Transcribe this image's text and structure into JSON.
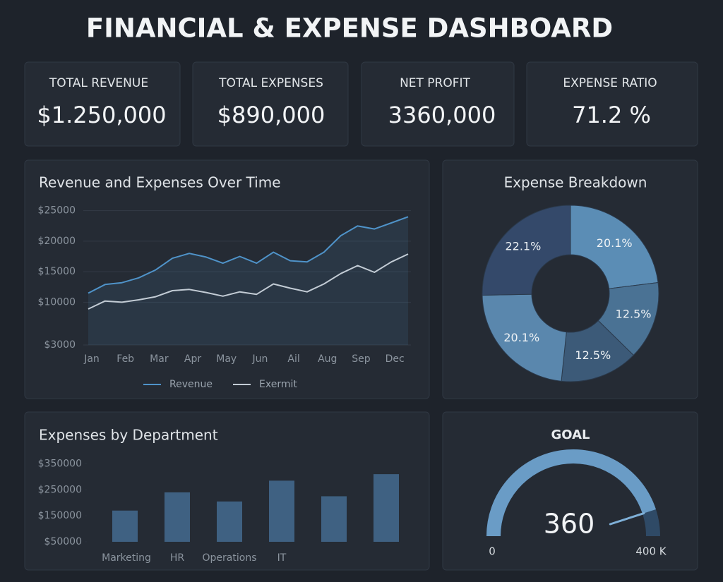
{
  "title": "FINANCIAL & EXPENSE DASHBOARD",
  "kpis": [
    {
      "label": "TOTAL REVENUE",
      "value": "$1.250,000"
    },
    {
      "label": "TOTAL EXPENSES",
      "value": "$890,000"
    },
    {
      "label": "NET PROFIT",
      "value": "3360,000"
    },
    {
      "label": "EXPENSE RATIO",
      "value": "71.2 %"
    }
  ],
  "chart_data": [
    {
      "type": "line",
      "title": "Revenue and Expenses Over Time",
      "categories": [
        "Jan",
        null,
        "Feb",
        null,
        "Mar",
        null,
        "Apr",
        null,
        "May",
        null,
        "Jun",
        null,
        "Ail",
        null,
        "Aug",
        null,
        "Sep",
        null,
        "Dec",
        null
      ],
      "series": [
        {
          "name": "Revenue",
          "color": "#4f93c9",
          "values": [
            11500,
            12900,
            13200,
            14000,
            15300,
            17200,
            18000,
            17400,
            16400,
            17500,
            16400,
            18200,
            16800,
            16600,
            18200,
            20900,
            22500,
            22000,
            23000,
            24000
          ]
        },
        {
          "name": "Exermit",
          "color": "#c3ccd5",
          "values": [
            8900,
            10200,
            10000,
            10400,
            10900,
            11900,
            12100,
            11600,
            11000,
            11700,
            11300,
            13000,
            12300,
            11700,
            13000,
            14700,
            16000,
            14900,
            16600,
            17900
          ]
        }
      ],
      "ylim": [
        3000,
        26000
      ],
      "yticks": [
        {
          "value": 25000,
          "label": "$25000"
        },
        {
          "value": 20000,
          "label": "$20000"
        },
        {
          "value": 15000,
          "label": "$15000"
        },
        {
          "value": 10000,
          "label": "$10000"
        },
        {
          "value": 3000,
          "label": "$3000"
        }
      ],
      "grid": true,
      "legend": "bottom"
    },
    {
      "type": "pie",
      "title": "Expense Breakdown",
      "values": [
        20.1,
        12.5,
        12.5,
        20.1,
        22.1
      ],
      "value_labels": [
        "20.1%",
        "12.5%",
        "12.5%",
        "20.1%",
        "22.1%"
      ],
      "colors": [
        "#5b8db5",
        "#4a7294",
        "#3c5a78",
        "#5a87ad",
        "#34496a"
      ],
      "donut": true
    },
    {
      "type": "bar",
      "title": "Expenses by Department",
      "categories": [
        "Marketing",
        "HR",
        "Operations",
        "IT",
        null,
        null
      ],
      "values": [
        170000,
        240000,
        205000,
        285000,
        225000,
        310000
      ],
      "color": "#3f6182",
      "ylim": [
        50000,
        370000
      ],
      "yticks": [
        {
          "value": 350000,
          "label": "$350000"
        },
        {
          "value": 250000,
          "label": "$250000"
        },
        {
          "value": 150000,
          "label": "$150000"
        },
        {
          "value": 50000,
          "label": "$50000"
        }
      ]
    },
    {
      "type": "gauge",
      "title": "GOAL",
      "value": 360,
      "range": [
        0,
        {
          "value": 400,
          "label": "400 K"
        }
      ],
      "color": "#6a9cc6",
      "track_color": "#2f4a66"
    }
  ]
}
